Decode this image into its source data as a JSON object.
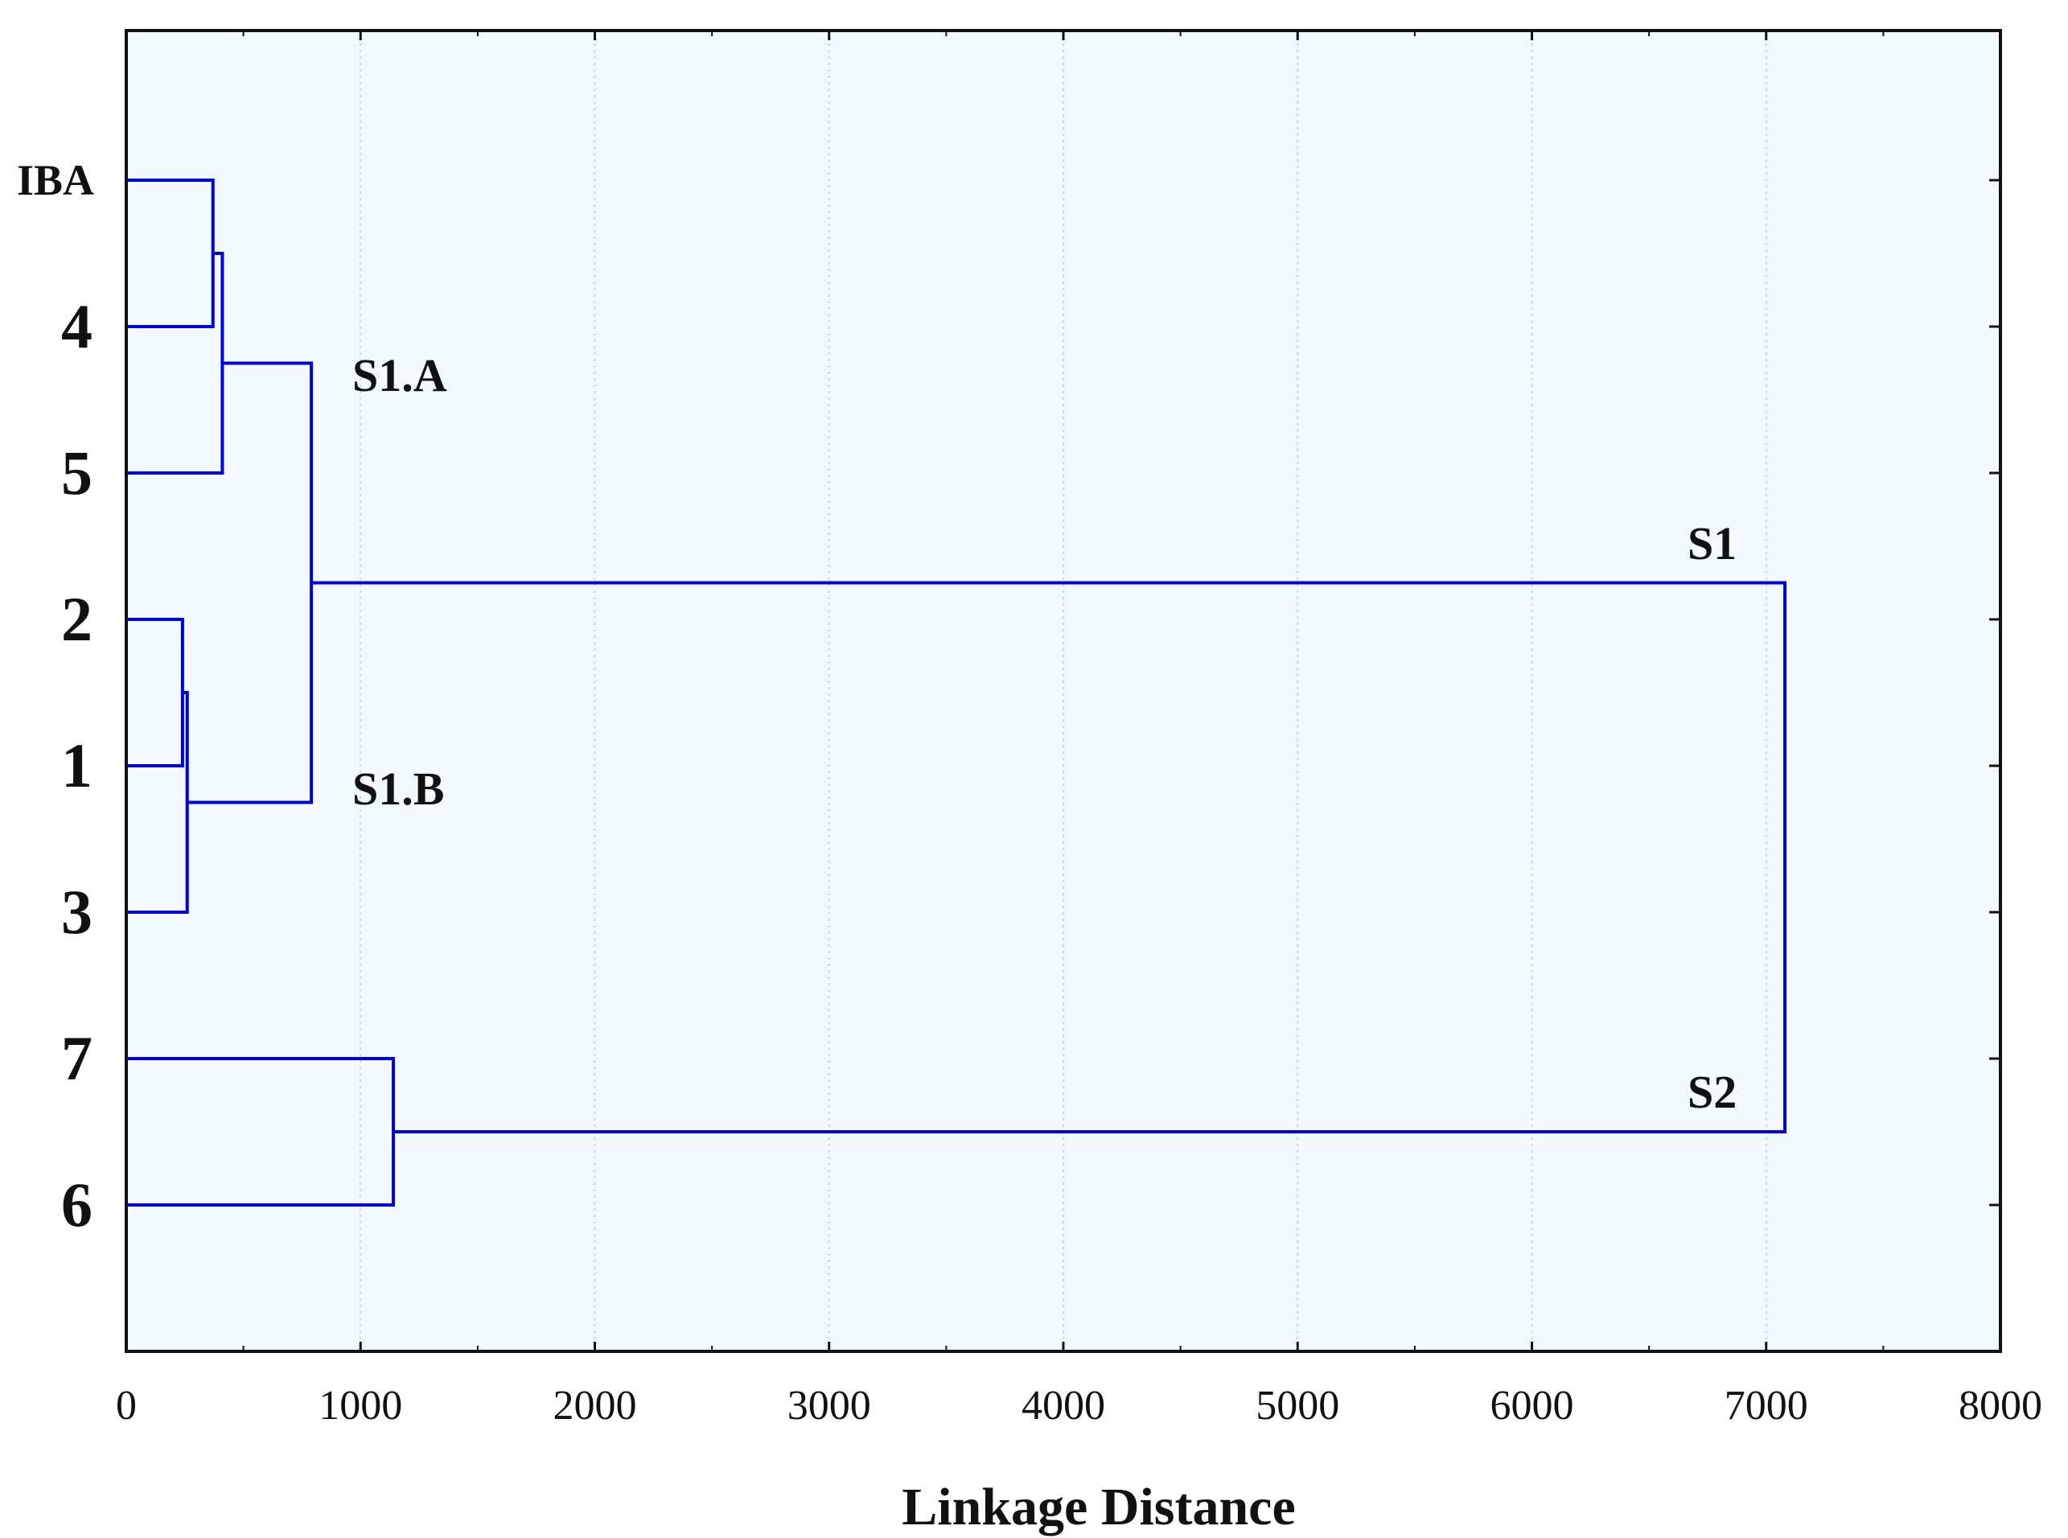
{
  "chart_data": {
    "type": "dendrogram",
    "title": "",
    "xlabel": "Linkage Distance",
    "ylabel": "",
    "xlim": [
      0,
      8000
    ],
    "xticks": [
      "0",
      "1000",
      "2000",
      "3000",
      "4000",
      "5000",
      "6000",
      "7000",
      "8000"
    ],
    "orientation": "horizontal",
    "grid": "vertical dotted lines at x ticks",
    "line_color": "#0000dd",
    "background_color": "#f3fafd",
    "leaves": [
      "IBA",
      "4",
      "5",
      "2",
      "1",
      "3",
      "7",
      "6"
    ],
    "merges": [
      {
        "left": "2",
        "right": "1",
        "distance": 240
      },
      {
        "left": "2+1",
        "right": "3",
        "distance": 260
      },
      {
        "left": "IBA",
        "right": "4",
        "distance": 370
      },
      {
        "left": "IBA+4",
        "right": "5",
        "distance": 410
      },
      {
        "left": "S1.A",
        "right": "S1.B",
        "distance": 790
      },
      {
        "left": "7",
        "right": "6",
        "distance": 1140
      },
      {
        "left": "S1",
        "right": "S2",
        "distance": 7080
      }
    ],
    "cluster_labels": [
      {
        "text": "S1.A",
        "cluster": "IBA,4,5"
      },
      {
        "text": "S1.B",
        "cluster": "2,1,3"
      },
      {
        "text": "S1",
        "cluster": "IBA,4,5,2,1,3"
      },
      {
        "text": "S2",
        "cluster": "7,6"
      }
    ]
  }
}
